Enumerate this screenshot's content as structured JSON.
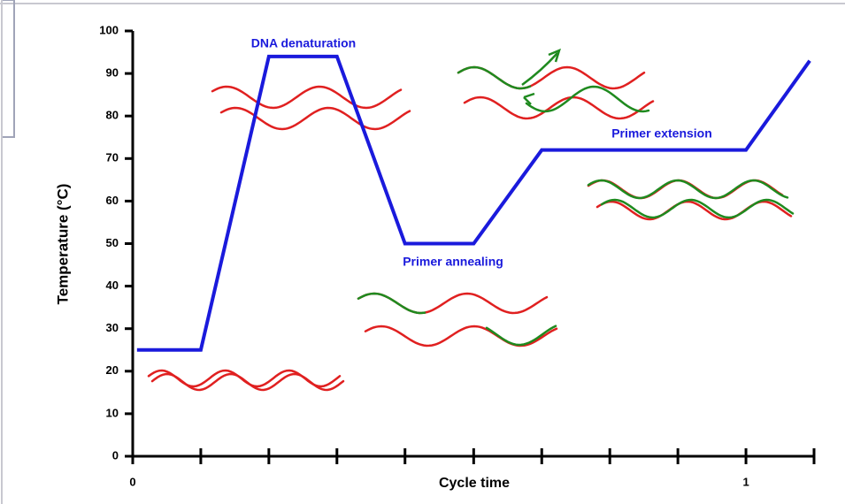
{
  "chart_data": {
    "type": "line",
    "y_label": "Temperature (°C)",
    "x_label": "Cycle time",
    "annotations": [
      "DNA denaturation",
      "Primer annealing",
      "Primer extension"
    ],
    "x": [
      0.007,
      0.111,
      0.222,
      0.333,
      0.444,
      0.556,
      0.667,
      1,
      1.104
    ],
    "series": [
      {
        "color": "#1a1adc",
        "values": [
          25,
          25,
          94,
          94,
          50,
          50,
          72,
          72,
          93
        ]
      }
    ],
    "xlim": [
      0,
      1.111
    ],
    "xticks": [
      0,
      1
    ],
    "x_tick_marks": [
      0,
      0.111,
      0.222,
      0.333,
      0.444,
      0.556,
      0.667,
      0.778,
      0.889,
      1,
      1.111
    ],
    "ylim": [
      0,
      100
    ],
    "yticks": [
      0,
      10,
      20,
      30,
      40,
      50,
      60,
      70,
      80,
      90,
      100
    ]
  }
}
